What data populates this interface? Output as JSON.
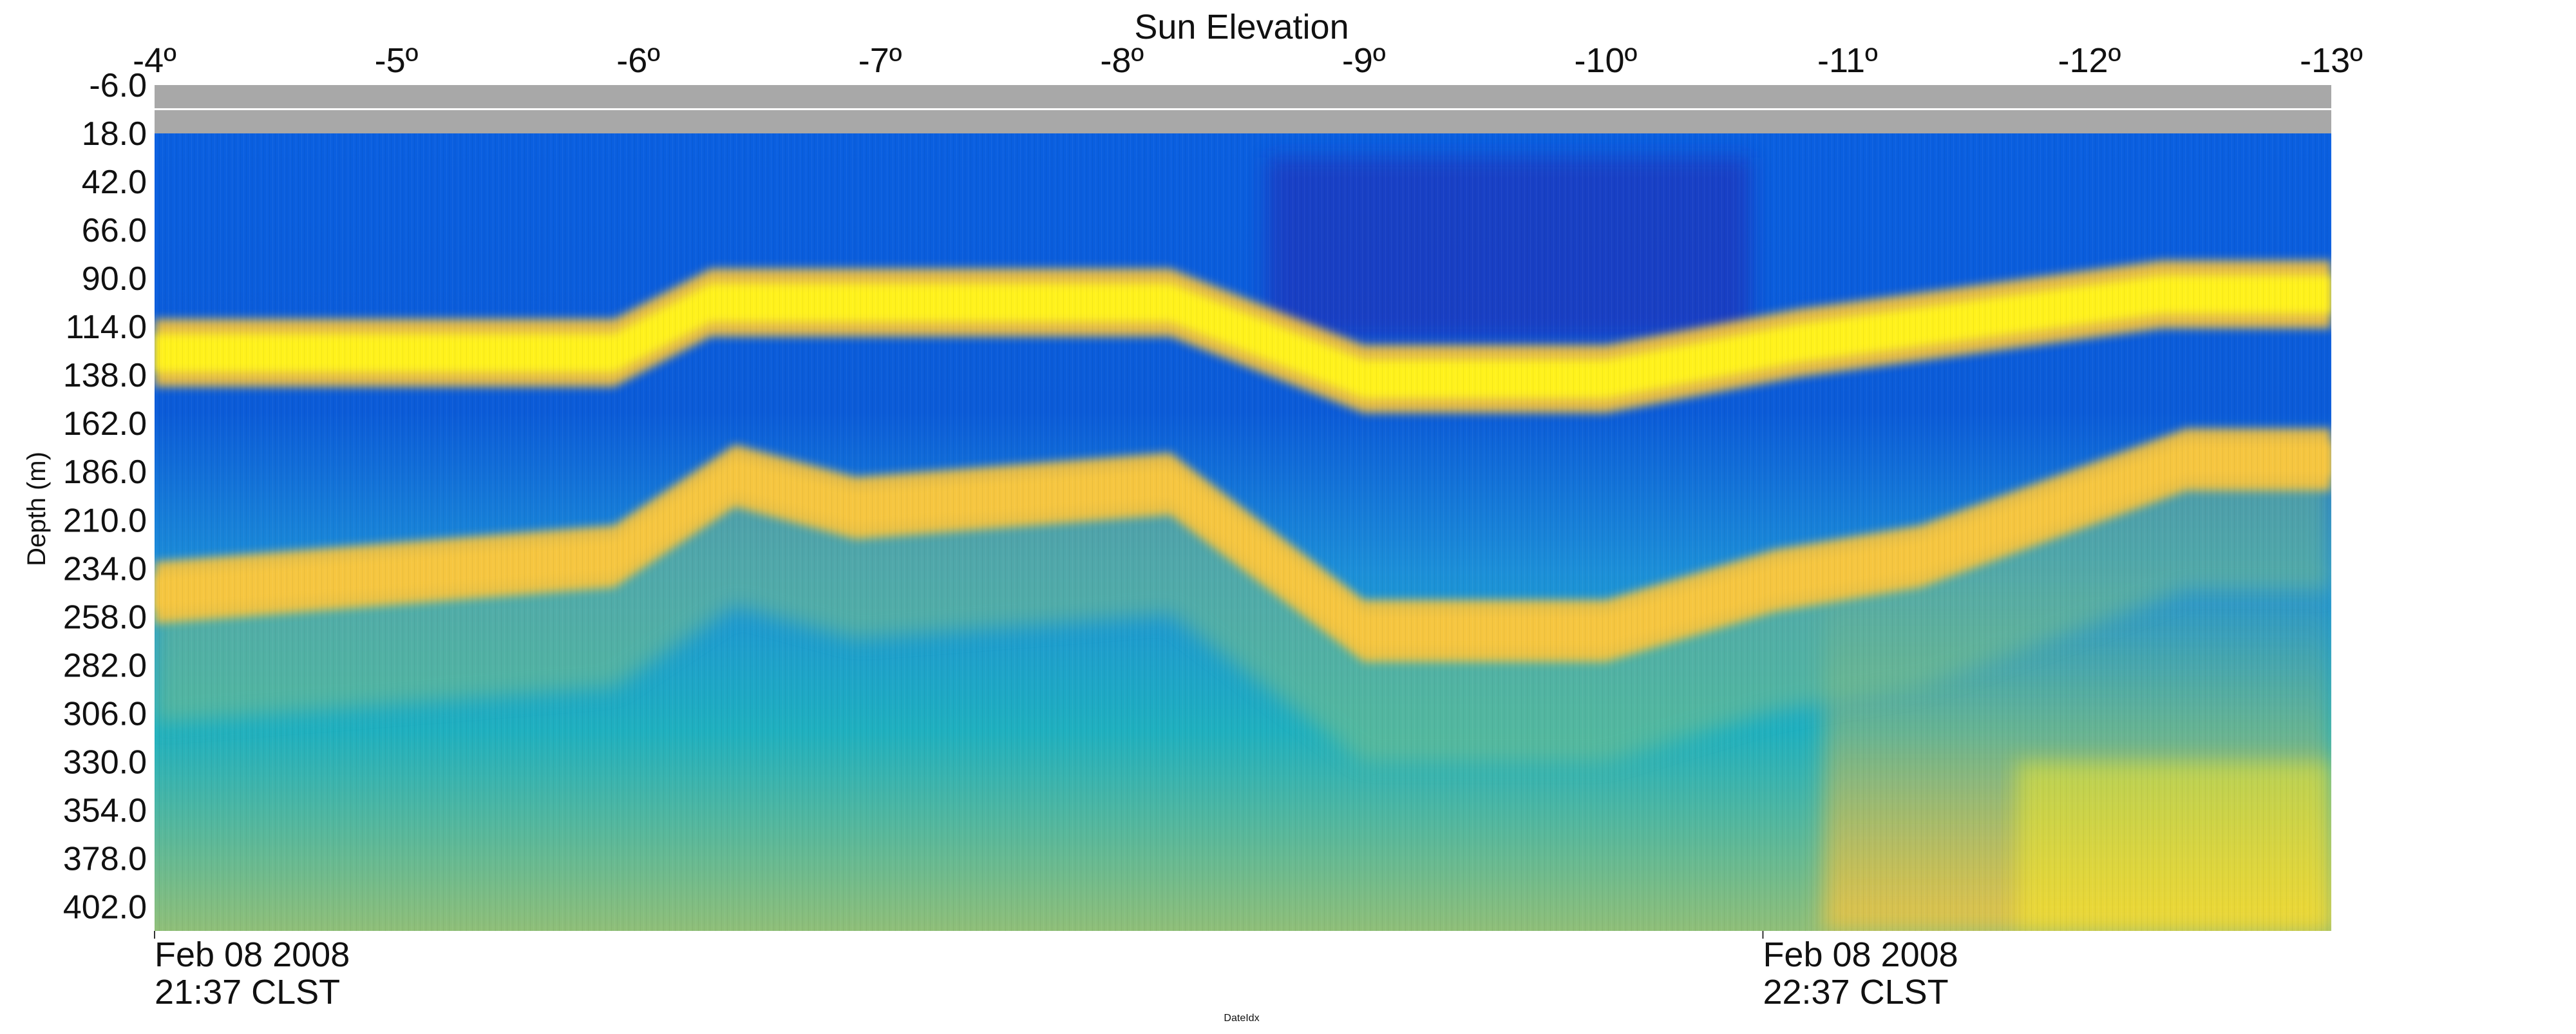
{
  "chart_data": {
    "type": "heatmap",
    "title": "Sun Elevation",
    "ylabel": "Depth (m)",
    "xlabel": "DateIdx",
    "top_axis_ticks": [
      "-4º",
      "-5º",
      "-6º",
      "-7º",
      "-8º",
      "-9º",
      "-10º",
      "-11º",
      "-12º",
      "-13º"
    ],
    "y_ticks": [
      "-6.0",
      "18.0",
      "42.0",
      "66.0",
      "90.0",
      "114.0",
      "138.0",
      "162.0",
      "186.0",
      "210.0",
      "234.0",
      "258.0",
      "282.0",
      "306.0",
      "330.0",
      "354.0",
      "378.0",
      "402.0"
    ],
    "y_range": [
      -6,
      414
    ],
    "no_data_depth_range": [
      -6,
      18
    ],
    "x_range_sun_elevation": [
      -4,
      -13
    ],
    "bottom_time_labels": [
      {
        "date": "Feb 08 2008",
        "time": "21:37 CLST",
        "sun_elevation": -4
      },
      {
        "date": "Feb 08 2008",
        "time": "22:37 CLST",
        "sun_elevation": -10.65
      }
    ],
    "colormap": [
      "#2a1fa8",
      "#0a5fe0",
      "#1c8fd8",
      "#1fb0bf",
      "#7bbf86",
      "#d9b24a",
      "#fbc53a",
      "#fff21a"
    ],
    "no_data_color": "#a8a8a8",
    "layers": [
      {
        "name": "upper scattering layer",
        "sun_elevation": [
          -4,
          -5.9,
          -6.3,
          -6.7,
          -8.2,
          -9.0,
          -10.0,
          -10.8,
          -12.3,
          -13
        ],
        "depth": [
          127,
          127,
          102,
          102,
          102,
          140,
          140,
          122,
          98,
          98
        ],
        "thickness": 24
      },
      {
        "name": "lower scattering layer",
        "sun_elevation": [
          -4,
          -5.9,
          -6.4,
          -6.9,
          -8.2,
          -9.0,
          -10.0,
          -10.7,
          -11.3,
          -12.4,
          -13
        ],
        "depth": [
          246,
          228,
          188,
          204,
          192,
          265,
          265,
          240,
          228,
          180,
          180
        ],
        "thickness": 22
      }
    ]
  }
}
